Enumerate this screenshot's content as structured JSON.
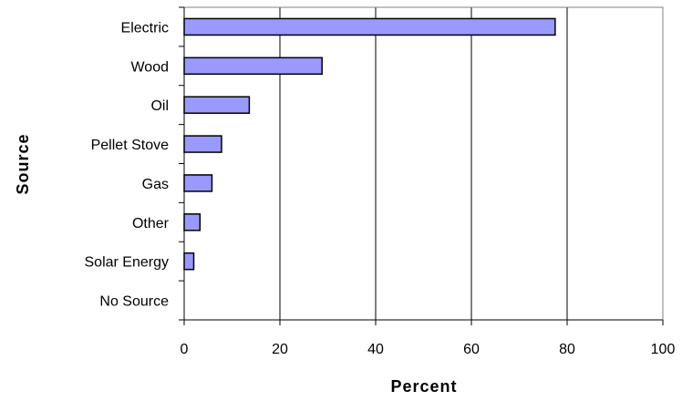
{
  "chart_data": {
    "type": "bar",
    "orientation": "horizontal",
    "title": "",
    "xlabel": "Percent",
    "ylabel": "Source",
    "categories": [
      "Electric",
      "Wood",
      "Oil",
      "Pellet Stove",
      "Gas",
      "Other",
      "Solar Energy",
      "No Source"
    ],
    "values": [
      77.5,
      28.8,
      13.6,
      7.8,
      5.8,
      3.3,
      2.0,
      0
    ],
    "xlim": [
      0,
      100
    ],
    "xticks": [
      0,
      20,
      40,
      60,
      80,
      100
    ],
    "grid": "vertical",
    "legend": "none",
    "colors": {
      "bar_fill": "#9999ff",
      "bar_stroke": "#000000",
      "grid": "#000000"
    }
  }
}
